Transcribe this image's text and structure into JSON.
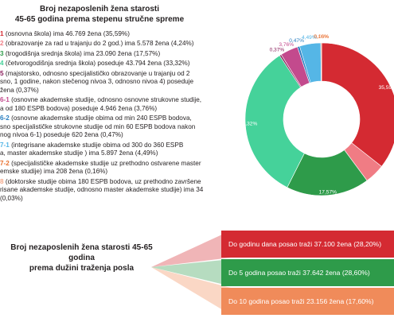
{
  "top_title": {
    "line1": "Broj nezaposlenih žena starosti",
    "line2": "45-65 godina prema stepenu stručne spreme"
  },
  "legend": [
    {
      "code": "1",
      "text": " (osnovna škola) ima 46.769 žena (35,59%)",
      "color": "#d42a32"
    },
    {
      "code": "2",
      "text": " (obrazovanje za rad u trajanju do 2 god.) ima 5.578 žena (4,24%)",
      "color": "#f07c84"
    },
    {
      "code": "3",
      "text": " (trogodišnja srednja škola) ima 23.090 žena (17,57%)",
      "color": "#2e9b4a"
    },
    {
      "code": "4",
      "text": " (četvorogodišnja srednja škola) poseduje 43.794 žena (33,32%)",
      "color": "#45d29a"
    },
    {
      "code": "5",
      "text": " (majstorsko, odnosno specijalističko obrazovanje u trajanju od 2\nsno, 1 godine, nakon stečenog nivoa 3, odnosno nivoa 4) poseduje\nžena (0,37%)",
      "color": "#8a1f5c"
    },
    {
      "code": "6-1",
      "text": " (osnovne akademske studije, odnosno osnovne strukovne studije,\na od 180 ESPB bodova) poseduje 4.946 žena (3,76%)",
      "color": "#c34a8d"
    },
    {
      "code": "6-2",
      "text": " (osnovne akademske studije obima od min 240 ESPB bodova,\nsno specijalističke strukovne studije od min 60 ESPB bodova nakon\nnog nivoa 6-1) poseduje 620 žena (0,47%)",
      "color": "#2a7fc1"
    },
    {
      "code": "7-1",
      "text": " (integrisane akademske studije obima od 300 do 360 ESPB\na, master akademske studije ) ima 5.897 žena (4,49%)",
      "color": "#55b6e6"
    },
    {
      "code": "7-2",
      "text": " (specijalističke akademske studije uz prethodno ostvarene master\nemske studije) ima 208 žena (0,16%)",
      "color": "#e86f2c"
    },
    {
      "code": "8",
      "text": " (doktorske studije obima 180 ESPB bodova, uz prethodno završene\nrisane akademske studije, odnosno master akademske studije) ima 34\n(0,03%)",
      "color": "#f4a98a"
    }
  ],
  "chart_data": {
    "type": "pie",
    "donut": true,
    "categories": [
      "1",
      "2",
      "3",
      "4",
      "5",
      "6-1",
      "6-2",
      "7-1",
      "7-2",
      "8"
    ],
    "values": [
      46769,
      5578,
      23090,
      43794,
      485,
      4946,
      620,
      5897,
      208,
      34
    ],
    "percent_labels": [
      "35,59%",
      "4,24%",
      "17,57%",
      "33,32%",
      "0,37%",
      "3,76%",
      "0,47%",
      "4,49%",
      "0,16%",
      "0,03%"
    ],
    "colors": [
      "#d42a32",
      "#f07c84",
      "#2e9b4a",
      "#45d29a",
      "#8a1f5c",
      "#c34a8d",
      "#2a7fc1",
      "#55b6e6",
      "#e86f2c",
      "#f4a98a"
    ]
  },
  "bottom_title": {
    "line1": "Broj nezaposlenih žena starosti 45-65 godina",
    "line2": "prema dužini traženja posla"
  },
  "search_duration": [
    {
      "text": "Do godinu dana posao traži 37.100 žena (28,20%)",
      "value": 37100,
      "percent": 28.2,
      "color": "#d42a32"
    },
    {
      "text": "Do 5 godina posao traži 37.642 žena (28,60%)",
      "value": 37642,
      "percent": 28.6,
      "color": "#2e9b4a"
    },
    {
      "text": "Do 10 godina posao traži 23.156 žena (17,60%)",
      "value": 23156,
      "percent": 17.6,
      "color": "#f08b5a"
    }
  ]
}
